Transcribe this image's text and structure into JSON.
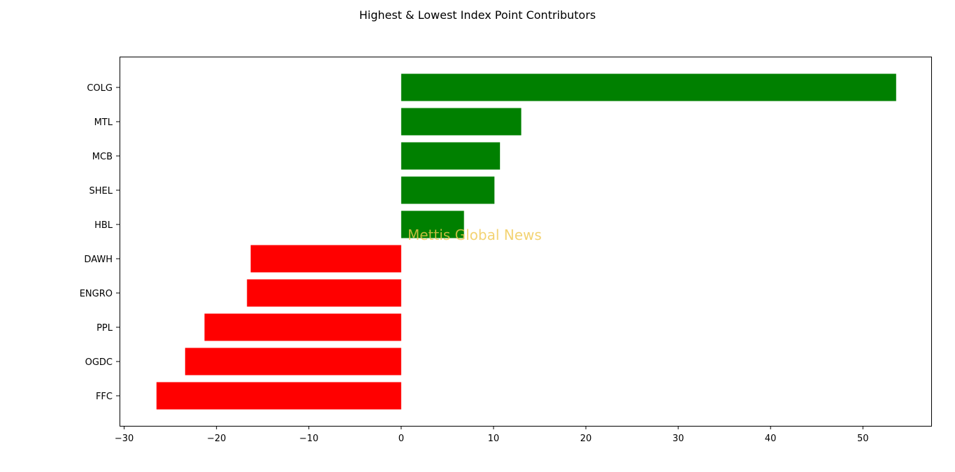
{
  "chart_data": {
    "type": "bar",
    "orientation": "horizontal",
    "title": "Highest & Lowest Index Point Contributors",
    "xlabel": "",
    "ylabel": "",
    "categories": [
      "COLG",
      "MTL",
      "MCB",
      "SHEL",
      "HBL",
      "DAWH",
      "ENGRO",
      "PPL",
      "OGDC",
      "FFC"
    ],
    "values": [
      53.6,
      13.0,
      10.7,
      10.1,
      6.8,
      -16.3,
      -16.7,
      -21.3,
      -23.4,
      -26.5
    ],
    "bar_colors": [
      "#008000",
      "#008000",
      "#008000",
      "#008000",
      "#008000",
      "#ff0000",
      "#ff0000",
      "#ff0000",
      "#ff0000",
      "#ff0000"
    ],
    "xlim": [
      -30.5,
      57.4
    ],
    "xticks": [
      -30,
      -20,
      -10,
      0,
      10,
      20,
      30,
      40,
      50
    ],
    "xtick_labels": [
      "−30",
      "−20",
      "−10",
      "0",
      "10",
      "20",
      "30",
      "40",
      "50"
    ],
    "grid": false,
    "watermark": "Mettis Global News",
    "watermark_color": "#f0c850"
  }
}
